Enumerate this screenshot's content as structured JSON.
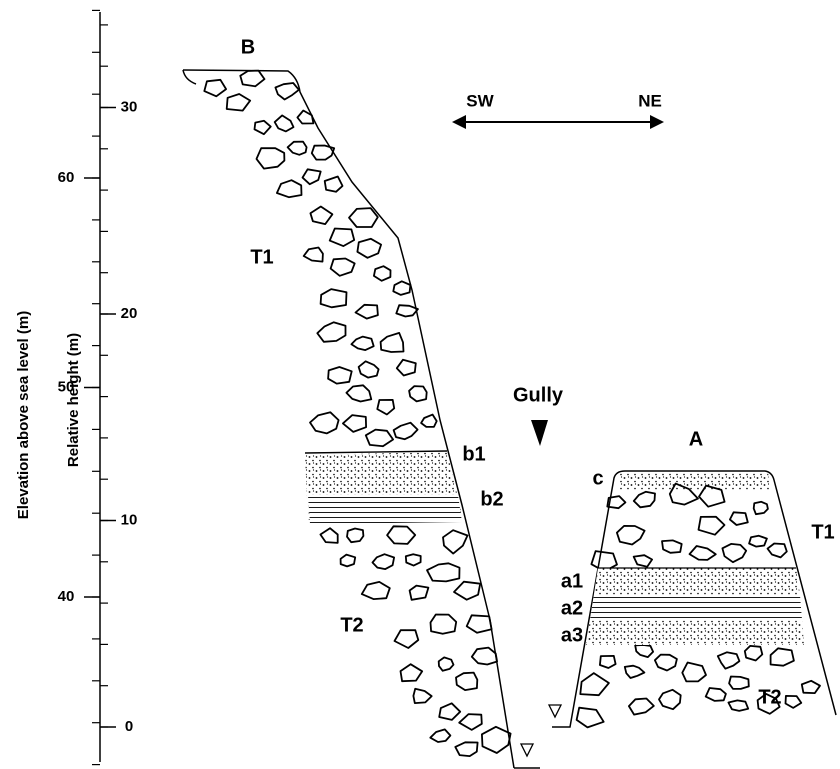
{
  "axes": {
    "elevation": {
      "title": "Elevation above sea level (m)",
      "ticks": [
        60,
        50,
        40
      ]
    },
    "relative_height": {
      "title": "Relative height (m)",
      "ticks": [
        30,
        20,
        10,
        0
      ]
    }
  },
  "direction": {
    "left": "SW",
    "right": "NE"
  },
  "gully": "Gully",
  "sections": [
    {
      "name": "B",
      "labels": [
        "T1",
        "b1",
        "b2",
        "T2"
      ]
    },
    {
      "name": "A",
      "labels": [
        "c",
        "T1",
        "a1",
        "a2",
        "a3",
        "T2"
      ]
    }
  ]
}
